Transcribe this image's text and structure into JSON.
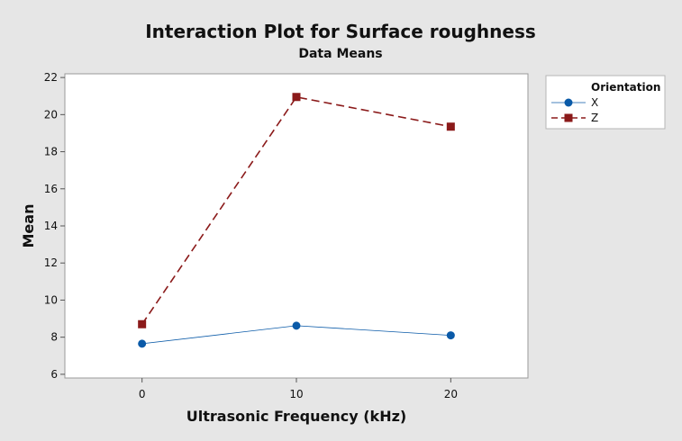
{
  "chart_data": {
    "type": "line",
    "title": "Interaction Plot for Surface roughness",
    "subtitle": "Data Means",
    "xlabel": "Ultrasonic Frequency (kHz)",
    "ylabel": "Mean",
    "categories": [
      "0",
      "10",
      "20"
    ],
    "x": [
      0,
      10,
      20
    ],
    "xlim": [
      -5,
      25
    ],
    "ylim": [
      5.8,
      22.2
    ],
    "yticks": [
      6,
      8,
      10,
      12,
      14,
      16,
      18,
      20,
      22
    ],
    "grid": false,
    "legend_placement": "right",
    "legend_title": "Orientation",
    "series": [
      {
        "name": "X",
        "values": [
          7.65,
          8.62,
          8.1
        ],
        "color": "#0a5aa8",
        "marker": "circle",
        "line_style": "solid"
      },
      {
        "name": "Z",
        "values": [
          8.7,
          20.95,
          19.35
        ],
        "color": "#8b1a1a",
        "marker": "square",
        "line_style": "dashed"
      }
    ]
  }
}
